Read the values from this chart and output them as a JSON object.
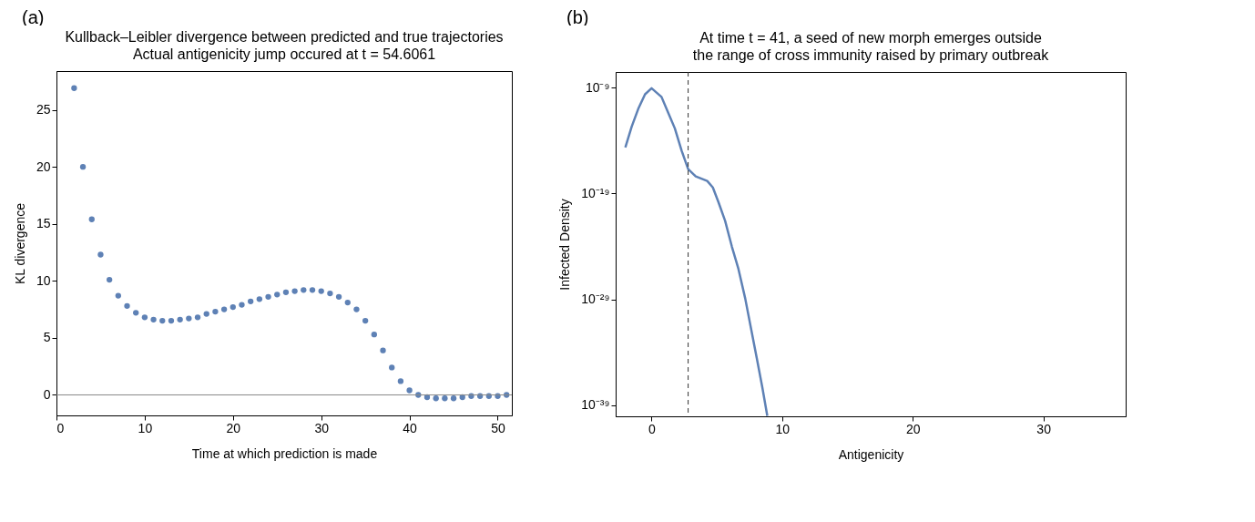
{
  "chart_data": [
    {
      "type": "scatter",
      "title": "Kullback–Leibler divergence between predicted and true trajectories",
      "subtitle": "Actual antigenicity jump occured at t = 54.6061",
      "xlabel": "Time at which prediction is made",
      "ylabel": "KL divergence",
      "annotations": [
        "(a)"
      ],
      "x": [
        2,
        3,
        4,
        5,
        6,
        7,
        8,
        9,
        10,
        11,
        12,
        13,
        14,
        15,
        16,
        17,
        18,
        19,
        20,
        21,
        22,
        23,
        24,
        25,
        26,
        27,
        28,
        29,
        30,
        31,
        32,
        33,
        34,
        35,
        36,
        37,
        38,
        39,
        40,
        41,
        42,
        43,
        44,
        45,
        46,
        47,
        48,
        49,
        50,
        51
      ],
      "series": [
        {
          "color": "#5e81b5",
          "values": [
            26.9,
            20.0,
            15.4,
            12.3,
            10.1,
            8.7,
            7.8,
            7.2,
            6.8,
            6.6,
            6.5,
            6.5,
            6.6,
            6.7,
            6.8,
            7.1,
            7.3,
            7.5,
            7.7,
            7.9,
            8.2,
            8.4,
            8.6,
            8.8,
            9.0,
            9.1,
            9.2,
            9.2,
            9.1,
            8.9,
            8.6,
            8.1,
            7.5,
            6.5,
            5.3,
            3.9,
            2.4,
            1.2,
            0.4,
            0.0,
            -0.2,
            -0.3,
            -0.3,
            -0.3,
            -0.2,
            -0.1,
            -0.1,
            -0.1,
            -0.1,
            0.0
          ]
        }
      ],
      "xlim": [
        0,
        51.6
      ],
      "ylim": [
        -1.8,
        28.4
      ],
      "xticks": [
        0,
        10,
        20,
        30,
        40,
        50
      ],
      "yticks": [
        0,
        5,
        10,
        15,
        20,
        25
      ],
      "ref_lines": [
        {
          "axis": "y",
          "value": 0,
          "color": "#888888",
          "line_style": "solid"
        }
      ],
      "grid": false,
      "marker": "circle"
    },
    {
      "type": "line",
      "title": "At time t = 41, a seed of new morph emerges outside",
      "subtitle": "the range of cross immunity raised by primary outbreak",
      "xlabel": "Antigenicity",
      "ylabel": "Infected Density",
      "annotations": [
        "(b)"
      ],
      "series": [
        {
          "color": "#5e81b5",
          "x": [
            -2.01,
            -1.52,
            -0.99,
            -0.5,
            0,
            0.76,
            1.28,
            1.78,
            2.3,
            2.8,
            3.38,
            4.26,
            4.69,
            5.13,
            5.63,
            6.15,
            6.65,
            7.17,
            7.61,
            8.05,
            8.48,
            8.86
          ],
          "values": [
            2.2e-15,
            2.1e-13,
            1.2e-11,
            2.3e-10,
            8.5e-10,
            1.3e-10,
            3.9e-12,
            1.4e-13,
            1.1e-15,
            2e-17,
            4.1e-18,
            1.5e-18,
            3.7e-19,
            1.4e-20,
            2.6e-22,
            9.3e-25,
            7.4e-27,
            1.2e-29,
            1.9e-32,
            3e-35,
            4.8e-38,
            1e-40
          ]
        }
      ],
      "xlim": [
        -2.75,
        36.3
      ],
      "ylim": [
        8.9e-41,
        2.95e-08
      ],
      "log": "y",
      "xticks": [
        0,
        10,
        20,
        30
      ],
      "yticks": [
        {
          "value": 1e-39,
          "label": "10⁻³⁹"
        },
        {
          "value": 1e-29,
          "label": "10⁻²⁹"
        },
        {
          "value": 1e-19,
          "label": "10⁻¹⁹"
        },
        {
          "value": 1e-09,
          "label": "10⁻⁹"
        }
      ],
      "ref_lines": [
        {
          "axis": "x",
          "value": 2.8,
          "color": "#333333",
          "line_style": "dashed"
        }
      ],
      "grid": false,
      "line_style": "solid",
      "marker": "none"
    }
  ]
}
